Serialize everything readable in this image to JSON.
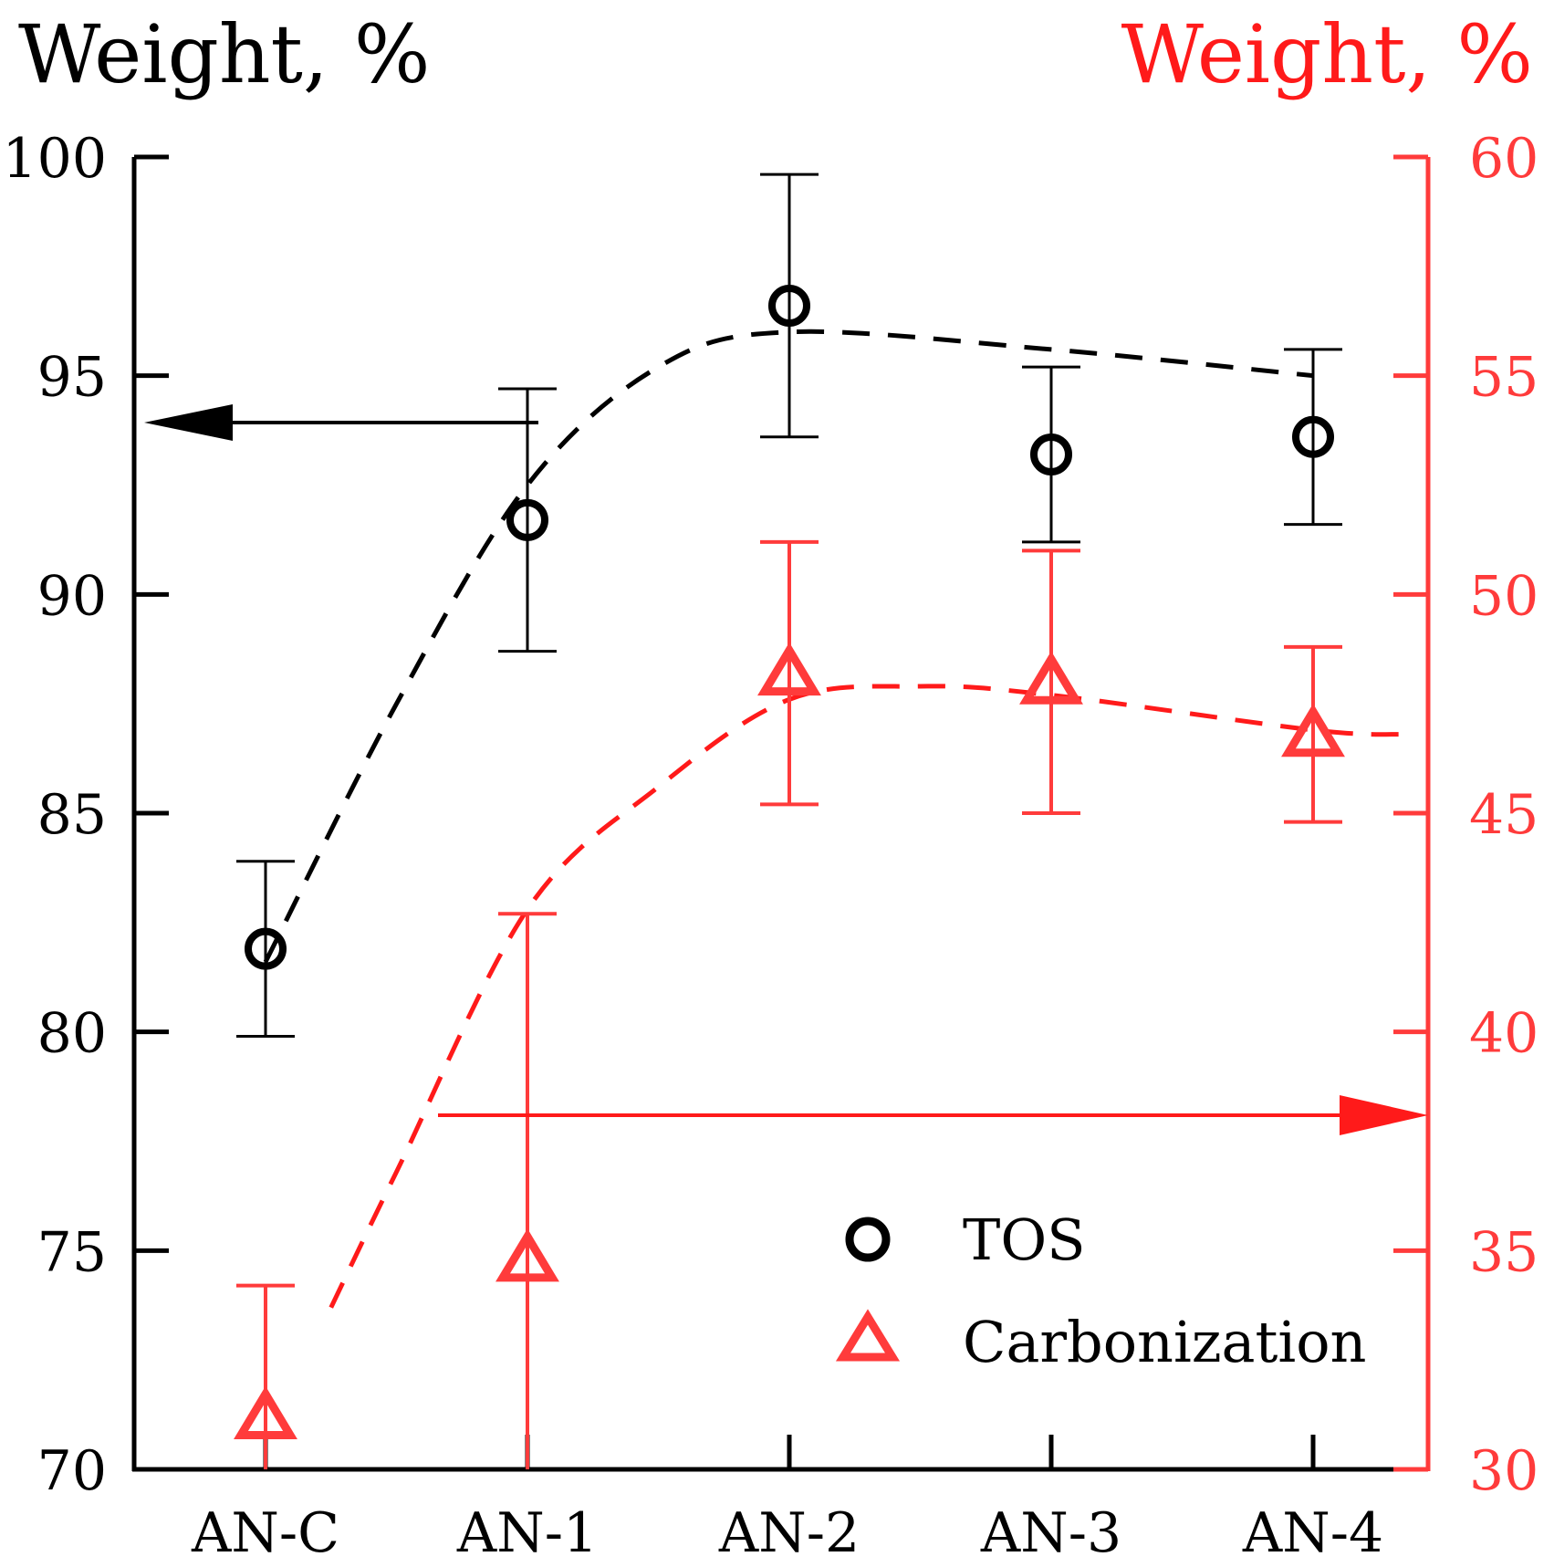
{
  "chart_data": {
    "type": "scatter",
    "categories": [
      "AN-C",
      "AN-1",
      "AN-2",
      "AN-3",
      "AN-4"
    ],
    "left_axis": {
      "label": "Weight, %",
      "ylim": [
        70,
        100
      ],
      "ticks": [
        70,
        75,
        80,
        85,
        90,
        95,
        100
      ],
      "color": "#000000"
    },
    "right_axis": {
      "label": "Weight, %",
      "ylim": [
        30,
        60
      ],
      "ticks": [
        30,
        35,
        40,
        45,
        50,
        55,
        60
      ],
      "color": "#ff3b3b"
    },
    "series": [
      {
        "name": "TOS",
        "axis": "left",
        "marker": "circle",
        "color": "#000000",
        "values": [
          81.9,
          91.7,
          96.6,
          93.2,
          93.6
        ],
        "err_low": [
          79.9,
          88.7,
          93.6,
          91.2,
          91.6
        ],
        "err_high": [
          83.9,
          94.7,
          99.6,
          95.2,
          95.6
        ],
        "trend": [
          [
            0,
            81.6
          ],
          [
            0.5,
            87.5
          ],
          [
            1,
            92.5
          ],
          [
            1.5,
            95.2
          ],
          [
            2,
            96.0
          ],
          [
            3,
            95.6
          ],
          [
            4,
            95.0
          ]
        ]
      },
      {
        "name": "Carbonization",
        "axis": "right",
        "marker": "triangle",
        "color": "#ff3b3b",
        "values": [
          31.2,
          34.8,
          48.2,
          48.0,
          46.8
        ],
        "err_low": [
          30.0,
          30.0,
          45.2,
          45.0,
          44.8
        ],
        "err_high": [
          34.2,
          42.7,
          51.2,
          51.0,
          48.8
        ],
        "trend": [
          [
            0.25,
            33.7
          ],
          [
            0.5,
            36.8
          ],
          [
            1,
            42.8
          ],
          [
            1.5,
            45.6
          ],
          [
            2,
            47.6
          ],
          [
            2.5,
            47.9
          ],
          [
            3,
            47.7
          ],
          [
            4,
            46.9
          ],
          [
            4.35,
            46.8
          ]
        ]
      }
    ],
    "legend": {
      "position": "bottom-right",
      "entries": [
        "TOS",
        "Carbonization"
      ]
    },
    "grid": false
  }
}
